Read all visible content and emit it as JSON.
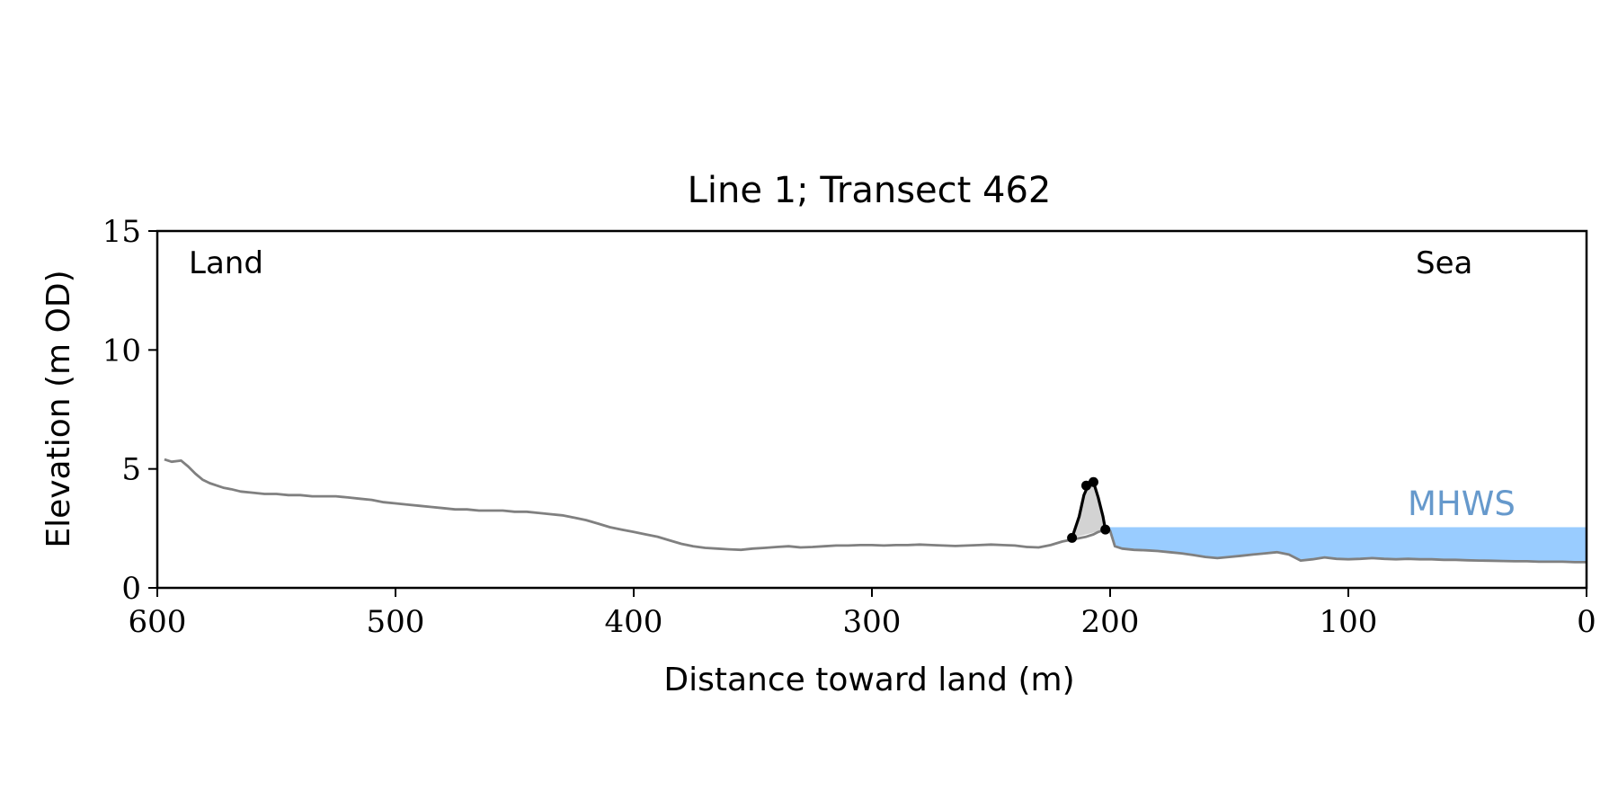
{
  "chart_data": {
    "type": "line",
    "title": "Line 1; Transect 462",
    "xlabel": "Distance toward land (m)",
    "ylabel": "Elevation (m OD)",
    "xlim": [
      600,
      0
    ],
    "ylim": [
      0,
      15
    ],
    "xticks": [
      600,
      500,
      400,
      300,
      200,
      100,
      0
    ],
    "xtick_labels": [
      "600",
      "500",
      "400",
      "300",
      "200",
      "100",
      "0"
    ],
    "yticks": [
      0,
      5,
      10,
      15
    ],
    "ytick_labels": [
      "0",
      "5",
      "10",
      "15"
    ],
    "grid": false,
    "annotations": {
      "land": "Land",
      "sea": "Sea",
      "mhws": "MHWS"
    },
    "colors": {
      "profile": "#808080",
      "dune": "#000000",
      "dune_fill": "#d3d3d3",
      "water": "#99ccff",
      "mhws_text": "#6699cc"
    },
    "mhws_level": 2.55,
    "profile": {
      "x": [
        597,
        594,
        590,
        587,
        584,
        581,
        578,
        575,
        572,
        569,
        565,
        560,
        555,
        550,
        545,
        540,
        535,
        530,
        525,
        520,
        515,
        510,
        505,
        500,
        495,
        490,
        485,
        480,
        475,
        470,
        465,
        460,
        455,
        450,
        445,
        440,
        435,
        430,
        425,
        420,
        415,
        410,
        405,
        400,
        395,
        390,
        385,
        380,
        375,
        370,
        365,
        360,
        355,
        350,
        345,
        340,
        335,
        330,
        325,
        320,
        315,
        310,
        305,
        300,
        295,
        290,
        285,
        280,
        275,
        270,
        265,
        260,
        255,
        250,
        245,
        240,
        235,
        230,
        225,
        220,
        215,
        210,
        207,
        205,
        202,
        200,
        198,
        195,
        190,
        185,
        180,
        175,
        170,
        165,
        160,
        155,
        150,
        145,
        140,
        135,
        130,
        125,
        120,
        115,
        110,
        105,
        100,
        95,
        90,
        85,
        80,
        75,
        70,
        65,
        60,
        55,
        50,
        45,
        40,
        35,
        30,
        25,
        20,
        15,
        10,
        5,
        0
      ],
      "y": [
        5.4,
        5.3,
        5.35,
        5.1,
        4.8,
        4.55,
        4.4,
        4.3,
        4.2,
        4.15,
        4.05,
        4.0,
        3.95,
        3.95,
        3.9,
        3.9,
        3.85,
        3.85,
        3.85,
        3.8,
        3.75,
        3.7,
        3.6,
        3.55,
        3.5,
        3.45,
        3.4,
        3.35,
        3.3,
        3.3,
        3.25,
        3.25,
        3.25,
        3.2,
        3.2,
        3.15,
        3.1,
        3.05,
        2.95,
        2.85,
        2.7,
        2.55,
        2.45,
        2.35,
        2.25,
        2.15,
        2.0,
        1.85,
        1.75,
        1.68,
        1.65,
        1.62,
        1.6,
        1.65,
        1.68,
        1.72,
        1.75,
        1.7,
        1.72,
        1.75,
        1.78,
        1.78,
        1.8,
        1.8,
        1.78,
        1.8,
        1.8,
        1.82,
        1.8,
        1.78,
        1.76,
        1.78,
        1.8,
        1.82,
        1.8,
        1.78,
        1.72,
        1.7,
        1.8,
        1.95,
        2.05,
        2.15,
        2.25,
        2.35,
        2.45,
        2.4,
        1.75,
        1.65,
        1.6,
        1.58,
        1.55,
        1.5,
        1.45,
        1.38,
        1.3,
        1.25,
        1.3,
        1.35,
        1.4,
        1.45,
        1.5,
        1.4,
        1.15,
        1.2,
        1.28,
        1.22,
        1.2,
        1.22,
        1.25,
        1.22,
        1.2,
        1.22,
        1.2,
        1.2,
        1.18,
        1.18,
        1.16,
        1.15,
        1.14,
        1.13,
        1.12,
        1.12,
        1.1,
        1.1,
        1.1,
        1.08,
        1.08
      ]
    },
    "dune": {
      "x": [
        216,
        213,
        211,
        209,
        207,
        205,
        203,
        202
      ],
      "y": [
        2.1,
        3.0,
        3.9,
        4.35,
        4.45,
        3.8,
        3.0,
        2.45
      ]
    },
    "dune_markers": {
      "x": [
        216,
        210,
        207,
        202
      ],
      "y": [
        2.1,
        4.3,
        4.45,
        2.45
      ]
    }
  }
}
